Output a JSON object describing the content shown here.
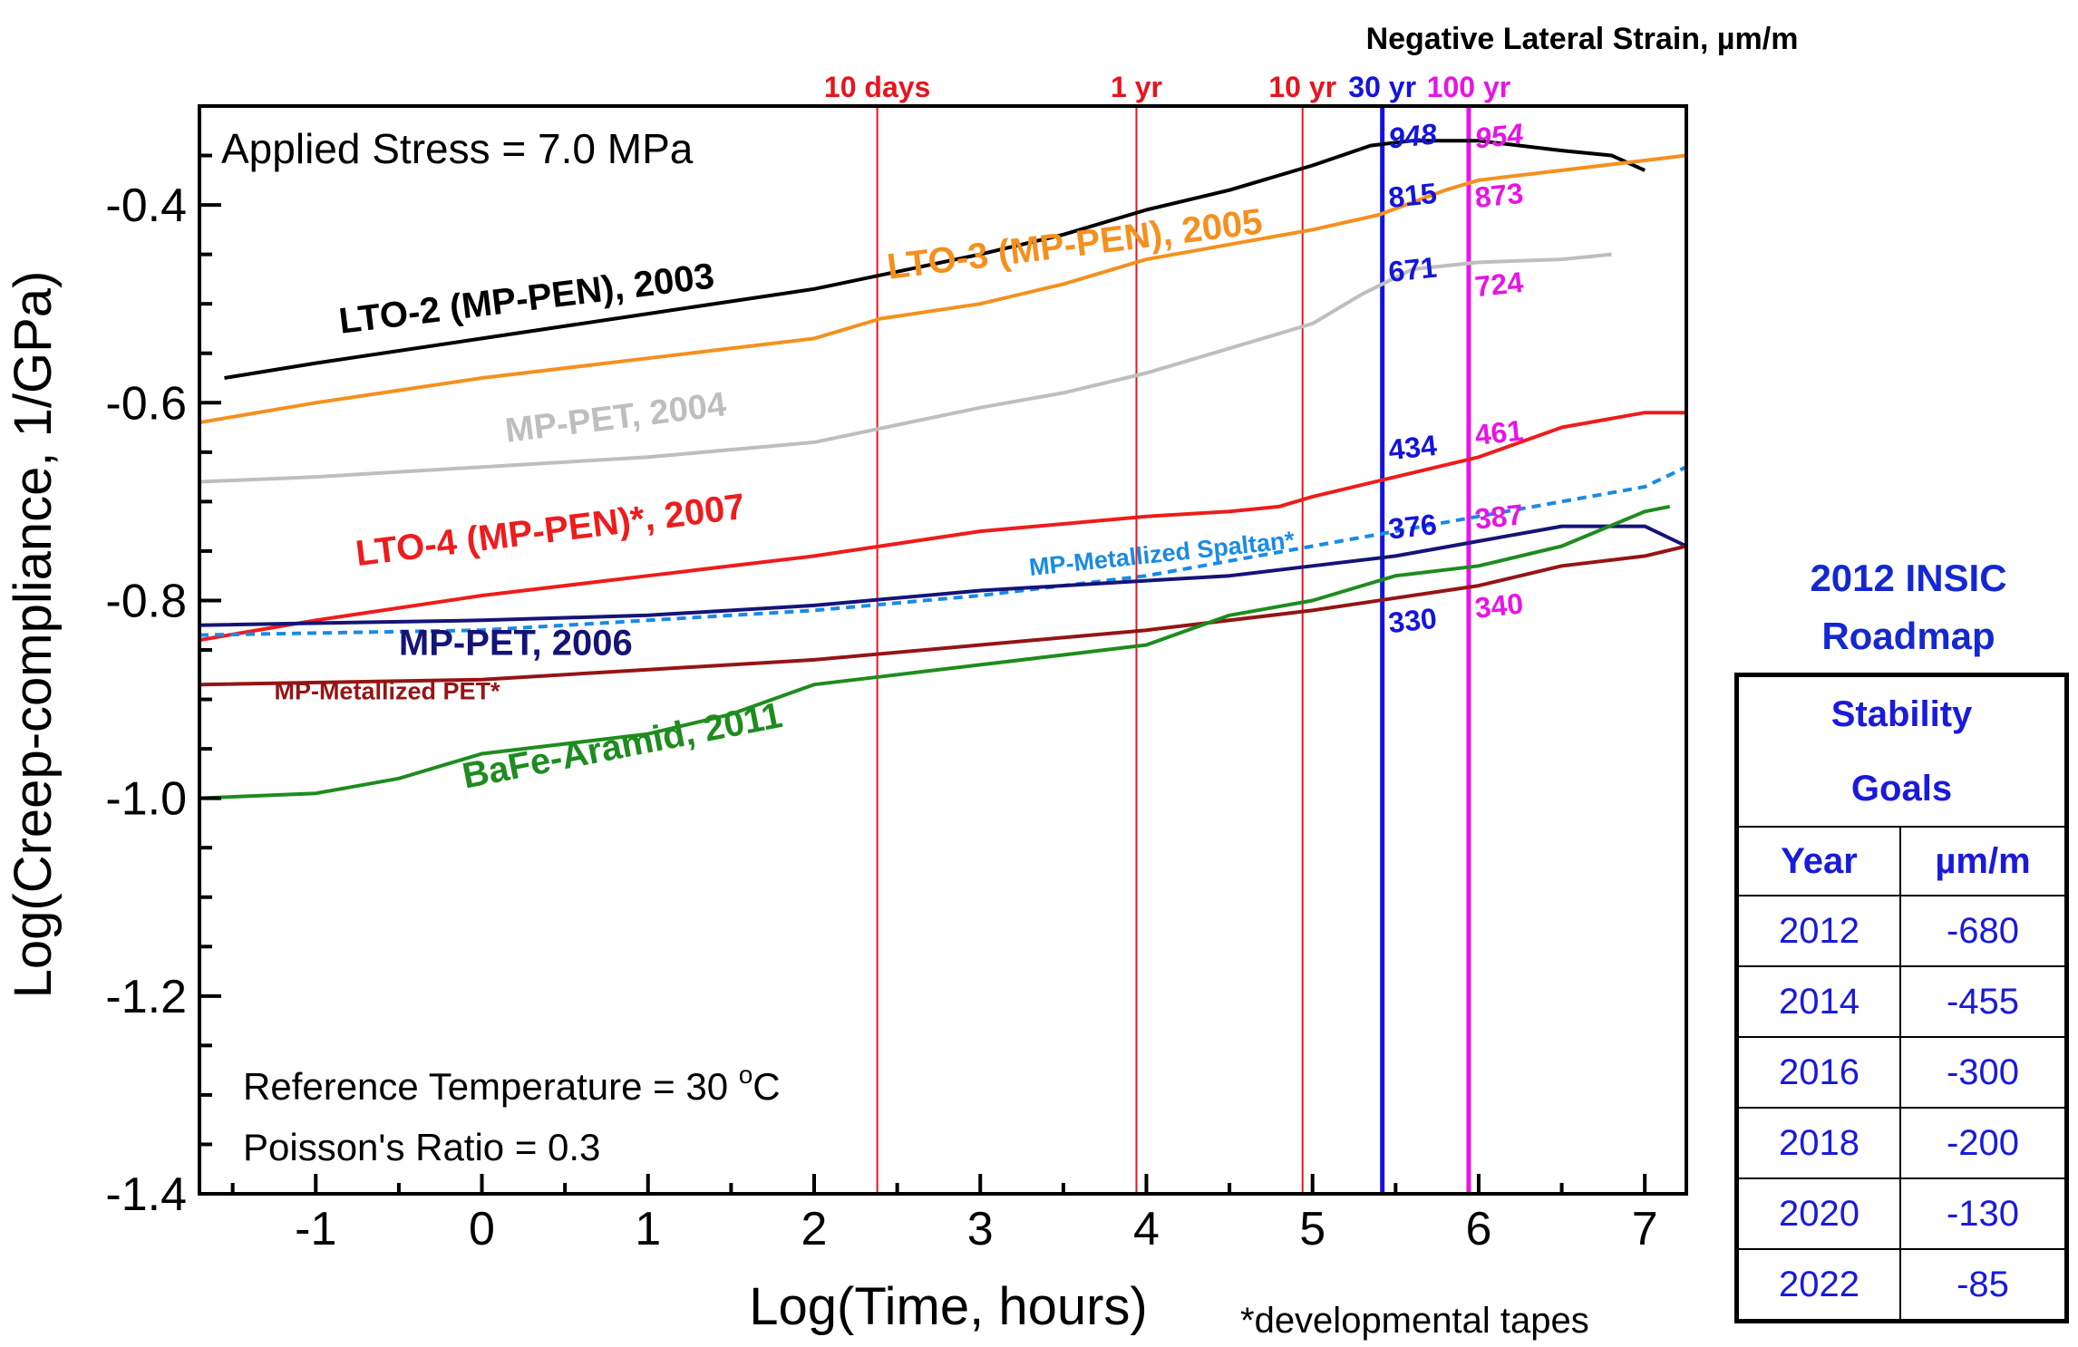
{
  "chart_data": {
    "type": "line",
    "xlabel": "Log(Time, hours)",
    "ylabel": "Log(Creep-compliance, 1/GPa)",
    "top_label": "Negative Lateral Strain, µm/m",
    "xlim": [
      -1.7,
      7.25
    ],
    "ylim": [
      -1.4,
      -0.3
    ],
    "xticks": [
      "-1",
      "0",
      "1",
      "2",
      "3",
      "4",
      "5",
      "6",
      "7"
    ],
    "yticks": [
      "-0.4",
      "-0.6",
      "-0.8",
      "-1.0",
      "-1.2",
      "-1.4"
    ],
    "annotations": {
      "stress": "Applied Stress = 7.0 MPa",
      "temperature": "Reference Temperature = 30 ",
      "temperature_sup": "o",
      "temperature_unit": "C",
      "poisson": "Poisson's Ratio = 0.3",
      "footnote": "*developmental tapes"
    },
    "markers": [
      {
        "label": "10 days",
        "x": 2.38,
        "color": "#e8141e"
      },
      {
        "label": "1 yr",
        "x": 3.94,
        "color": "#e8141e"
      },
      {
        "label": "10 yr",
        "x": 4.94,
        "color": "#e8141e"
      },
      {
        "label": "30 yr",
        "x": 5.42,
        "color": "#1414dc"
      },
      {
        "label": "100 yr",
        "x": 5.94,
        "color": "#e614e6"
      }
    ],
    "strain_labels": [
      {
        "text": "948",
        "marker": "30 yr",
        "y": -0.33
      },
      {
        "text": "815",
        "marker": "30 yr",
        "y": -0.39
      },
      {
        "text": "671",
        "marker": "30 yr",
        "y": -0.465
      },
      {
        "text": "434",
        "marker": "30 yr",
        "y": -0.645
      },
      {
        "text": "376",
        "marker": "30 yr",
        "y": -0.725
      },
      {
        "text": "330",
        "marker": "30 yr",
        "y": -0.82
      },
      {
        "text": "954",
        "marker": "100 yr",
        "y": -0.33
      },
      {
        "text": "873",
        "marker": "100 yr",
        "y": -0.39
      },
      {
        "text": "724",
        "marker": "100 yr",
        "y": -0.48
      },
      {
        "text": "461",
        "marker": "100 yr",
        "y": -0.63
      },
      {
        "text": "387",
        "marker": "100 yr",
        "y": -0.715
      },
      {
        "text": "340",
        "marker": "100 yr",
        "y": -0.805
      }
    ],
    "series": [
      {
        "name": "LTO-2 (MP-PEN), 2003",
        "color": "#000000",
        "dash": false,
        "label_pos": [
          -0.85,
          -0.53
        ],
        "label_angle": -7,
        "label_size": 40,
        "points": [
          [
            -1.55,
            -0.575
          ],
          [
            -1,
            -0.56
          ],
          [
            0,
            -0.535
          ],
          [
            1,
            -0.51
          ],
          [
            2,
            -0.485
          ],
          [
            3,
            -0.45
          ],
          [
            3.5,
            -0.43
          ],
          [
            4,
            -0.405
          ],
          [
            4.5,
            -0.385
          ],
          [
            5,
            -0.36
          ],
          [
            5.35,
            -0.34
          ],
          [
            5.6,
            -0.335
          ],
          [
            6,
            -0.335
          ],
          [
            6.5,
            -0.345
          ],
          [
            6.8,
            -0.35
          ],
          [
            7,
            -0.365
          ]
        ]
      },
      {
        "name": "LTO-3 (MP-PEN), 2005",
        "color": "#f5901e",
        "dash": false,
        "label_pos": [
          2.45,
          -0.475
        ],
        "label_angle": -7,
        "label_size": 40,
        "points": [
          [
            -1.7,
            -0.62
          ],
          [
            -1,
            -0.6
          ],
          [
            0,
            -0.575
          ],
          [
            1,
            -0.555
          ],
          [
            2,
            -0.535
          ],
          [
            2.4,
            -0.515
          ],
          [
            3,
            -0.5
          ],
          [
            3.5,
            -0.48
          ],
          [
            4,
            -0.455
          ],
          [
            4.5,
            -0.44
          ],
          [
            5,
            -0.425
          ],
          [
            5.4,
            -0.41
          ],
          [
            5.8,
            -0.385
          ],
          [
            6,
            -0.375
          ],
          [
            6.5,
            -0.365
          ],
          [
            7,
            -0.355
          ],
          [
            7.25,
            -0.35
          ]
        ]
      },
      {
        "name": "MP-PET, 2004",
        "color": "#bebebe",
        "dash": false,
        "label_pos": [
          0.15,
          -0.64
        ],
        "label_angle": -7,
        "label_size": 38,
        "points": [
          [
            -1.7,
            -0.68
          ],
          [
            -1,
            -0.675
          ],
          [
            0,
            -0.665
          ],
          [
            1,
            -0.655
          ],
          [
            2,
            -0.64
          ],
          [
            3,
            -0.605
          ],
          [
            3.5,
            -0.59
          ],
          [
            4,
            -0.57
          ],
          [
            4.5,
            -0.545
          ],
          [
            5,
            -0.52
          ],
          [
            5.3,
            -0.49
          ],
          [
            5.6,
            -0.465
          ],
          [
            6,
            -0.458
          ],
          [
            6.5,
            -0.455
          ],
          [
            6.8,
            -0.45
          ]
        ]
      },
      {
        "name": "LTO-4 (MP-PEN)*, 2007",
        "color": "#ee1c1c",
        "dash": false,
        "label_pos": [
          -0.75,
          -0.765
        ],
        "label_angle": -7,
        "label_size": 40,
        "points": [
          [
            -1.7,
            -0.84
          ],
          [
            -1,
            -0.82
          ],
          [
            0,
            -0.795
          ],
          [
            1,
            -0.775
          ],
          [
            2,
            -0.755
          ],
          [
            3,
            -0.73
          ],
          [
            4,
            -0.715
          ],
          [
            4.5,
            -0.71
          ],
          [
            4.8,
            -0.705
          ],
          [
            5,
            -0.695
          ],
          [
            5.5,
            -0.675
          ],
          [
            6,
            -0.655
          ],
          [
            6.5,
            -0.625
          ],
          [
            7,
            -0.61
          ],
          [
            7.25,
            -0.61
          ]
        ]
      },
      {
        "name": "MP-Metallized Spaltan*",
        "color": "#1a8ae6",
        "dash": true,
        "label_pos": [
          3.3,
          -0.775
        ],
        "label_angle": -6,
        "label_size": 27,
        "points": [
          [
            -1.7,
            -0.835
          ],
          [
            0,
            -0.83
          ],
          [
            1,
            -0.82
          ],
          [
            2,
            -0.81
          ],
          [
            3,
            -0.795
          ],
          [
            4,
            -0.775
          ],
          [
            5,
            -0.745
          ],
          [
            6,
            -0.715
          ],
          [
            7,
            -0.685
          ],
          [
            7.25,
            -0.665
          ]
        ]
      },
      {
        "name": "MP-PET, 2006",
        "color": "#141478",
        "dash": false,
        "label_pos": [
          -0.5,
          -0.855
        ],
        "label_angle": 0,
        "label_size": 40,
        "points": [
          [
            -1.7,
            -0.825
          ],
          [
            0,
            -0.82
          ],
          [
            1,
            -0.815
          ],
          [
            2,
            -0.805
          ],
          [
            3,
            -0.79
          ],
          [
            4,
            -0.78
          ],
          [
            4.5,
            -0.775
          ],
          [
            5,
            -0.765
          ],
          [
            5.5,
            -0.755
          ],
          [
            6,
            -0.74
          ],
          [
            6.5,
            -0.725
          ],
          [
            7,
            -0.725
          ],
          [
            7.25,
            -0.745
          ]
        ]
      },
      {
        "name": "MP-Metallized PET*",
        "color": "#961414",
        "dash": false,
        "label_pos": [
          -1.25,
          -0.9
        ],
        "label_angle": 0,
        "label_size": 27,
        "points": [
          [
            -1.7,
            -0.885
          ],
          [
            0,
            -0.88
          ],
          [
            1,
            -0.87
          ],
          [
            2,
            -0.86
          ],
          [
            3,
            -0.845
          ],
          [
            4,
            -0.83
          ],
          [
            5,
            -0.81
          ],
          [
            6,
            -0.785
          ],
          [
            6.5,
            -0.765
          ],
          [
            7,
            -0.755
          ],
          [
            7.25,
            -0.745
          ]
        ]
      },
      {
        "name": "BaFe-Aramid, 2011",
        "color": "#1e8c1e",
        "dash": false,
        "label_pos": [
          -0.1,
          -0.99
        ],
        "label_angle": -11,
        "label_size": 40,
        "points": [
          [
            -1.7,
            -1.0
          ],
          [
            -1,
            -0.995
          ],
          [
            -0.5,
            -0.98
          ],
          [
            0,
            -0.955
          ],
          [
            0.5,
            -0.945
          ],
          [
            1,
            -0.935
          ],
          [
            1.5,
            -0.915
          ],
          [
            2,
            -0.885
          ],
          [
            2.5,
            -0.875
          ],
          [
            3,
            -0.865
          ],
          [
            3.5,
            -0.855
          ],
          [
            4,
            -0.845
          ],
          [
            4.5,
            -0.815
          ],
          [
            5,
            -0.8
          ],
          [
            5.5,
            -0.775
          ],
          [
            6,
            -0.765
          ],
          [
            6.5,
            -0.745
          ],
          [
            7,
            -0.71
          ],
          [
            7.15,
            -0.705
          ]
        ]
      }
    ]
  },
  "roadmap": {
    "title_line1": "2012 INSIC",
    "title_line2": "Roadmap",
    "table_title_line1": "Stability",
    "table_title_line2": "Goals",
    "col_year": "Year",
    "col_value": "µm/m",
    "rows": [
      {
        "year": "2012",
        "value": "-680"
      },
      {
        "year": "2014",
        "value": "-455"
      },
      {
        "year": "2016",
        "value": "-300"
      },
      {
        "year": "2018",
        "value": "-200"
      },
      {
        "year": "2020",
        "value": "-130"
      },
      {
        "year": "2022",
        "value": "-85"
      }
    ]
  }
}
